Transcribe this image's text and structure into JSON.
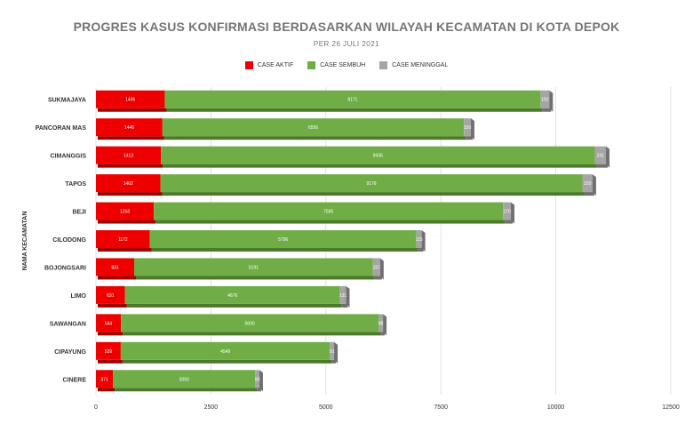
{
  "chart_data": {
    "type": "bar",
    "orientation": "horizontal",
    "stacked": true,
    "title": "PROGRES KASUS KONFIRMASI BERDASARKAN WILAYAH KECAMATAN DI KOTA DEPOK",
    "subtitle": "PER 26 JULI 2021",
    "ylabel": "NAMA KECAMATAN",
    "xlabel": "",
    "xlim": [
      0,
      12500
    ],
    "xticks": [
      "0",
      "2500",
      "5000",
      "7500",
      "10000",
      "12500"
    ],
    "grid": true,
    "legend_position": "top",
    "categories": [
      "SUKMAJAYA",
      "PANCORAN MAS",
      "CIMANGGIS",
      "TAPOS",
      "BEJI",
      "CILODONG",
      "BOJONGSARI",
      "LIMO",
      "SAWANGAN",
      "CIPAYUNG",
      "CINERE"
    ],
    "series": [
      {
        "name": "CASE AKTIF",
        "color": "#ee0000",
        "shade": "#a00000",
        "values": [
          1496,
          1446,
          1413,
          1402,
          1258,
          1172,
          831,
          631,
          544,
          539,
          371
        ]
      },
      {
        "name": "CASE SEMBUH",
        "color": "#70ad47",
        "shade": "#4a7a2a",
        "values": [
          8171,
          6556,
          9436,
          9176,
          7595,
          5796,
          5191,
          4676,
          5600,
          4549,
          3093
        ]
      },
      {
        "name": "CASE MENINGGAL",
        "color": "#a5a5a5",
        "shade": "#707070",
        "values": [
          192,
          150,
          241,
          220,
          170,
          115,
          157,
          131,
          98,
          91,
          90
        ]
      }
    ]
  }
}
